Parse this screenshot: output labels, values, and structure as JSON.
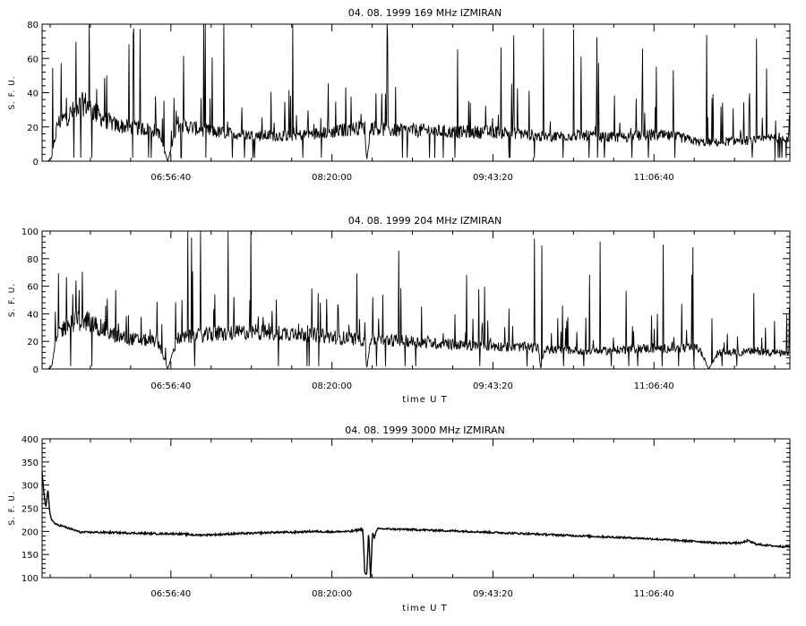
{
  "chart_data": [
    {
      "type": "line",
      "title": "04. 08. 1999    169 MHz    IZMIRAN",
      "ylabel": "S. F. U.",
      "xlabel": "",
      "xlim": [
        "05:50",
        "12:17"
      ],
      "ylim": [
        0,
        80
      ],
      "yticks": [
        0,
        20,
        40,
        60,
        80
      ],
      "xticks": [
        "06:56:40",
        "08:20:00",
        "09:43:20",
        "11:06:40"
      ],
      "series": [
        {
          "x": [
            "05:53",
            "05:55",
            "05:58",
            "06:05",
            "06:12",
            "06:20",
            "06:28",
            "06:35",
            "06:42",
            "06:50",
            "06:55",
            "07:00",
            "07:10",
            "07:20",
            "07:30",
            "07:40",
            "07:50",
            "08:00",
            "08:10",
            "08:20",
            "08:30",
            "08:37",
            "08:38",
            "08:40",
            "08:50",
            "09:00",
            "09:10",
            "09:20",
            "09:30",
            "09:40",
            "09:50",
            "10:00",
            "10:10",
            "10:20",
            "10:30",
            "10:40",
            "10:50",
            "11:00",
            "11:10",
            "11:20",
            "11:30",
            "11:40",
            "11:50",
            "12:00",
            "12:10",
            "12:17"
          ],
          "values": [
            0,
            2,
            22,
            28,
            34,
            26,
            21,
            20,
            19,
            18,
            0,
            22,
            19,
            17,
            16,
            15,
            15,
            15,
            16,
            17,
            19,
            20,
            0,
            20,
            18,
            18,
            18,
            17,
            17,
            17,
            17,
            16,
            14,
            15,
            15,
            14,
            14,
            15,
            15,
            14,
            11,
            11,
            12,
            12,
            14,
            14
          ]
        }
      ]
    },
    {
      "type": "line",
      "title": "04. 08. 1999    204 MHz    IZMIRAN",
      "ylabel": "S. F. U.",
      "xlabel": "time  U T",
      "xlim": [
        "05:50",
        "12:17"
      ],
      "ylim": [
        0,
        100
      ],
      "yticks": [
        0,
        20,
        40,
        60,
        80,
        100
      ],
      "xticks": [
        "06:56:40",
        "08:20:00",
        "09:43:20",
        "11:06:40"
      ],
      "series": [
        {
          "x": [
            "05:53",
            "05:55",
            "05:58",
            "06:05",
            "06:12",
            "06:20",
            "06:28",
            "06:35",
            "06:42",
            "06:50",
            "06:55",
            "07:00",
            "07:10",
            "07:20",
            "07:30",
            "07:40",
            "07:50",
            "08:00",
            "08:10",
            "08:20",
            "08:30",
            "08:37",
            "08:38",
            "08:40",
            "08:50",
            "09:00",
            "09:10",
            "09:20",
            "09:30",
            "09:40",
            "09:50",
            "10:00",
            "10:07",
            "10:08",
            "10:10",
            "10:20",
            "10:30",
            "10:40",
            "10:50",
            "11:00",
            "11:10",
            "11:20",
            "11:30",
            "11:35",
            "11:40",
            "11:50",
            "12:00",
            "12:10",
            "12:17"
          ],
          "values": [
            0,
            2,
            26,
            34,
            36,
            30,
            24,
            22,
            21,
            20,
            0,
            22,
            24,
            25,
            26,
            27,
            26,
            26,
            25,
            23,
            22,
            21,
            0,
            21,
            21,
            20,
            19,
            18,
            17,
            17,
            16,
            16,
            15,
            0,
            14,
            14,
            13,
            13,
            14,
            15,
            15,
            15,
            15,
            0,
            12,
            12,
            13,
            12,
            10
          ]
        }
      ]
    },
    {
      "type": "line",
      "title": "04. 08. 1999    3000 MHz    IZMIRAN",
      "ylabel": "S. F. U.",
      "xlabel": "time  U T",
      "xlim": [
        "05:50",
        "12:17"
      ],
      "ylim": [
        100,
        400
      ],
      "yticks": [
        100,
        150,
        200,
        250,
        300,
        350,
        400
      ],
      "xticks": [
        "06:56:40",
        "08:20:00",
        "09:43:20",
        "11:06:40"
      ],
      "series": [
        {
          "x": [
            "05:50",
            "05:51",
            "05:52",
            "05:53",
            "05:54",
            "05:55",
            "05:57",
            "06:00",
            "06:05",
            "06:10",
            "06:20",
            "06:30",
            "06:40",
            "06:50",
            "07:00",
            "07:10",
            "07:20",
            "07:30",
            "07:40",
            "07:50",
            "08:00",
            "08:10",
            "08:20",
            "08:30",
            "08:36",
            "08:37",
            "08:38",
            "08:39",
            "08:40",
            "08:41",
            "08:42",
            "08:43",
            "08:44",
            "08:50",
            "09:00",
            "09:30",
            "10:00",
            "10:30",
            "11:00",
            "11:30",
            "11:40",
            "11:52",
            "11:55",
            "12:00",
            "12:10",
            "12:17"
          ],
          "values": [
            330,
            280,
            250,
            290,
            240,
            225,
            215,
            212,
            205,
            198,
            198,
            197,
            196,
            195,
            195,
            192,
            193,
            195,
            196,
            198,
            198,
            200,
            199,
            200,
            205,
            110,
            105,
            200,
            95,
            200,
            185,
            200,
            206,
            205,
            204,
            200,
            195,
            190,
            185,
            178,
            175,
            175,
            180,
            172,
            168,
            167
          ]
        }
      ]
    }
  ]
}
